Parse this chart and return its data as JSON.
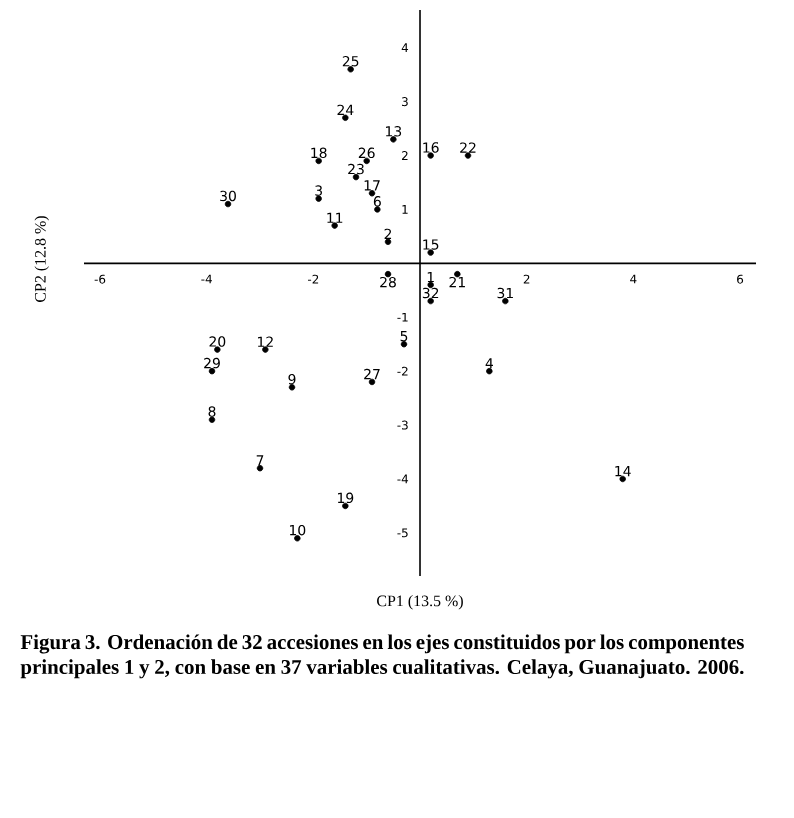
{
  "chart_data": {
    "type": "scatter",
    "xlabel": "CP1 (13.5 %)",
    "ylabel": "CP2 (12.8 %)",
    "annotations": [
      "Figura 3. Ordenación de 32 accesiones en los ejes constituidos por los componentes principales 1 y 2, con base en 37 variables cualitativas. Celaya, Guanajuato. 2006."
    ],
    "xlim": [
      -6.3,
      6.3
    ],
    "ylim": [
      -5.8,
      4.7
    ],
    "xticks": [
      -6,
      -4,
      -2,
      2,
      4,
      6
    ],
    "yticks": [
      -5,
      -4,
      -3,
      -2,
      -1,
      1,
      2,
      3,
      4
    ],
    "series": [
      {
        "name": "25",
        "color": "#000000",
        "x": [
          -1.3
        ],
        "values": [
          3.6
        ]
      },
      {
        "name": "24",
        "color": "#000000",
        "x": [
          -1.4
        ],
        "values": [
          2.7
        ]
      },
      {
        "name": "13",
        "color": "#000000",
        "x": [
          -0.5
        ],
        "values": [
          2.3
        ]
      },
      {
        "name": "18",
        "color": "#000000",
        "x": [
          -1.9
        ],
        "values": [
          1.9
        ]
      },
      {
        "name": "26",
        "color": "#000000",
        "x": [
          -1.0
        ],
        "values": [
          1.9
        ]
      },
      {
        "name": "23",
        "color": "#000000",
        "x": [
          -1.2
        ],
        "values": [
          1.6
        ]
      },
      {
        "name": "17",
        "color": "#000000",
        "x": [
          -0.9
        ],
        "values": [
          1.3
        ]
      },
      {
        "name": "3",
        "color": "#000000",
        "x": [
          -1.9
        ],
        "values": [
          1.2
        ]
      },
      {
        "name": "6",
        "color": "#000000",
        "x": [
          -0.8
        ],
        "values": [
          1.0
        ]
      },
      {
        "name": "30",
        "color": "#000000",
        "x": [
          -3.6
        ],
        "values": [
          1.1
        ]
      },
      {
        "name": "11",
        "color": "#000000",
        "x": [
          -1.6
        ],
        "values": [
          0.7
        ]
      },
      {
        "name": "2",
        "color": "#000000",
        "x": [
          -0.6
        ],
        "values": [
          0.4
        ]
      },
      {
        "name": "28",
        "color": "#000000",
        "x": [
          -0.6
        ],
        "values": [
          -0.2
        ]
      },
      {
        "name": "16",
        "color": "#000000",
        "x": [
          0.2
        ],
        "values": [
          2.0
        ]
      },
      {
        "name": "22",
        "color": "#000000",
        "x": [
          0.9
        ],
        "values": [
          2.0
        ]
      },
      {
        "name": "15",
        "color": "#000000",
        "x": [
          0.2
        ],
        "values": [
          0.2
        ]
      },
      {
        "name": "21",
        "color": "#000000",
        "x": [
          0.7
        ],
        "values": [
          -0.2
        ]
      },
      {
        "name": "1",
        "color": "#000000",
        "x": [
          0.2
        ],
        "values": [
          -0.4
        ]
      },
      {
        "name": "32",
        "color": "#000000",
        "x": [
          0.2
        ],
        "values": [
          -0.7
        ]
      },
      {
        "name": "31",
        "color": "#000000",
        "x": [
          1.6
        ],
        "values": [
          -0.7
        ]
      },
      {
        "name": "5",
        "color": "#000000",
        "x": [
          -0.3
        ],
        "values": [
          -1.5
        ]
      },
      {
        "name": "4",
        "color": "#000000",
        "x": [
          1.3
        ],
        "values": [
          -2.0
        ]
      },
      {
        "name": "27",
        "color": "#000000",
        "x": [
          -0.9
        ],
        "values": [
          -2.2
        ]
      },
      {
        "name": "14",
        "color": "#000000",
        "x": [
          3.8
        ],
        "values": [
          -4.0
        ]
      },
      {
        "name": "20",
        "color": "#000000",
        "x": [
          -3.8
        ],
        "values": [
          -1.6
        ]
      },
      {
        "name": "12",
        "color": "#000000",
        "x": [
          -2.9
        ],
        "values": [
          -1.6
        ]
      },
      {
        "name": "29",
        "color": "#000000",
        "x": [
          -3.9
        ],
        "values": [
          -2.0
        ]
      },
      {
        "name": "9",
        "color": "#000000",
        "x": [
          -2.4
        ],
        "values": [
          -2.3
        ]
      },
      {
        "name": "8",
        "color": "#000000",
        "x": [
          -3.9
        ],
        "values": [
          -2.9
        ]
      },
      {
        "name": "7",
        "color": "#000000",
        "x": [
          -3.0
        ],
        "values": [
          -3.8
        ]
      },
      {
        "name": "19",
        "color": "#000000",
        "x": [
          -1.4
        ],
        "values": [
          -4.5
        ]
      },
      {
        "name": "10",
        "color": "#000000",
        "x": [
          -2.3
        ],
        "values": [
          -5.1
        ]
      }
    ]
  }
}
